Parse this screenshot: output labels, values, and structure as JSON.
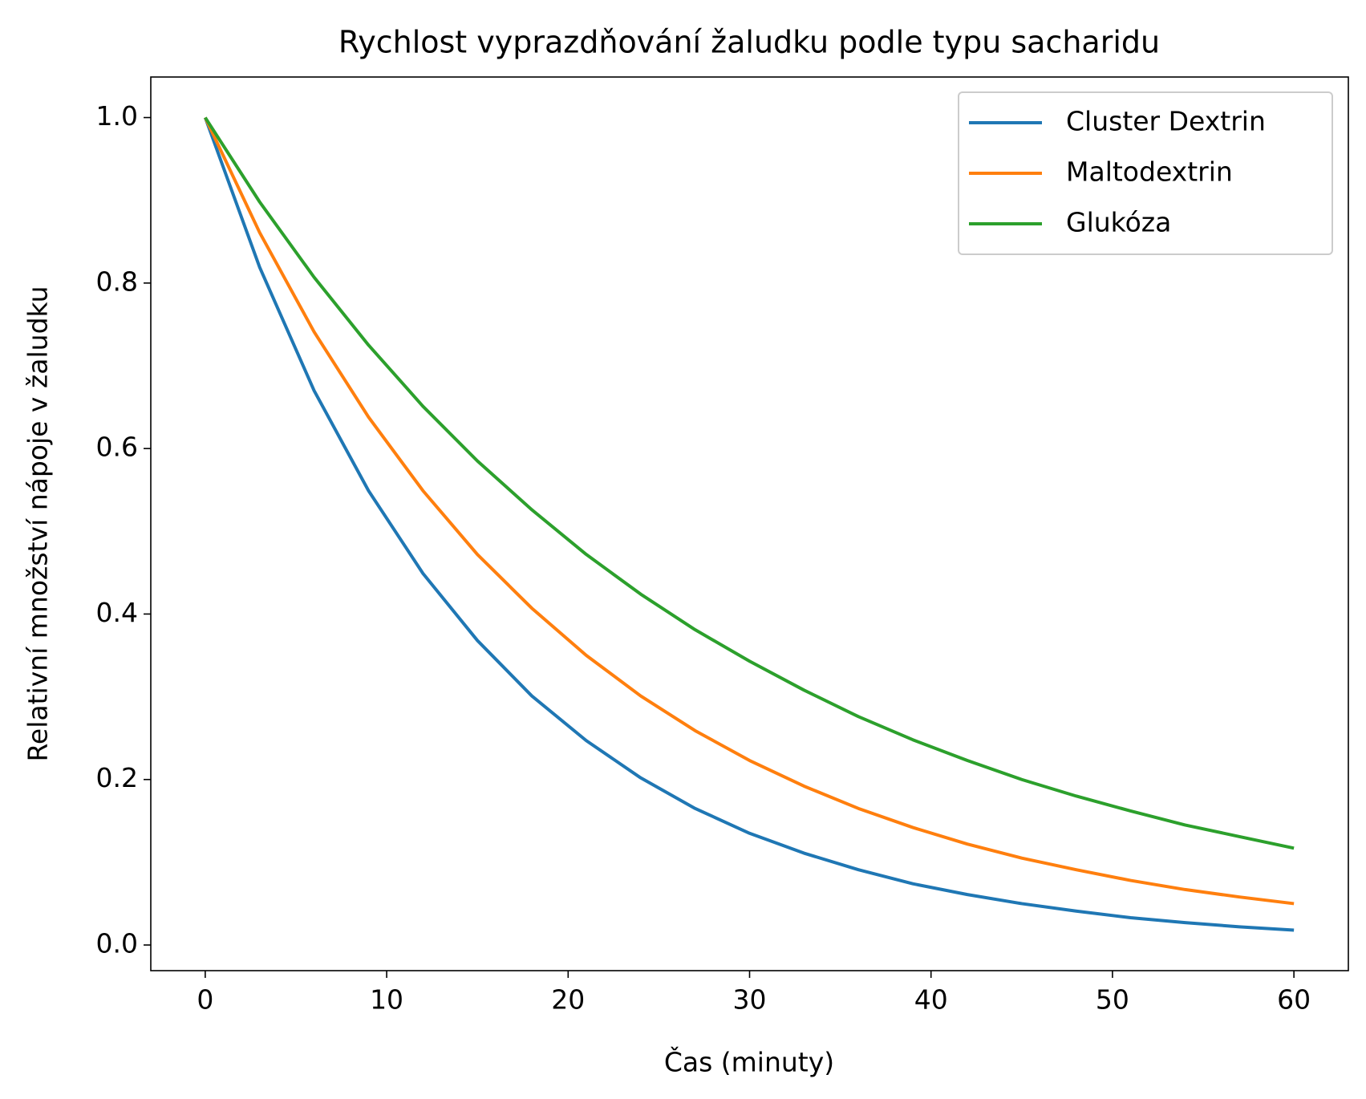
{
  "chart_data": {
    "type": "line",
    "title": "Rychlost vyprazdňování žaludku podle typu sacharidu",
    "xlabel": "Čas (minuty)",
    "ylabel": "Relativní množství nápoje v žaludku",
    "x": [
      0,
      3,
      6,
      9,
      12,
      15,
      18,
      21,
      24,
      27,
      30,
      33,
      36,
      39,
      42,
      45,
      48,
      51,
      54,
      57,
      60
    ],
    "series": [
      {
        "name": "Cluster Dextrin",
        "color": "#1f77b4",
        "values": [
          1,
          0.819,
          0.67,
          0.549,
          0.449,
          0.368,
          0.301,
          0.247,
          0.202,
          0.165,
          0.135,
          0.111,
          0.091,
          0.074,
          0.061,
          0.05,
          0.041,
          0.033,
          0.027,
          0.022,
          0.018
        ]
      },
      {
        "name": "Maltodextrin",
        "color": "#ff7f0e",
        "values": [
          1,
          0.861,
          0.741,
          0.638,
          0.549,
          0.472,
          0.407,
          0.35,
          0.301,
          0.259,
          0.223,
          0.192,
          0.165,
          0.142,
          0.122,
          0.105,
          0.091,
          0.078,
          0.067,
          0.058,
          0.05
        ]
      },
      {
        "name": "Glukóza",
        "color": "#2ca02c",
        "values": [
          1,
          0.898,
          0.807,
          0.725,
          0.651,
          0.585,
          0.526,
          0.472,
          0.424,
          0.381,
          0.343,
          0.308,
          0.276,
          0.248,
          0.223,
          0.2,
          0.18,
          0.162,
          0.145,
          0.131,
          0.117
        ]
      }
    ],
    "xlim": [
      -3,
      63
    ],
    "ylim": [
      -0.031,
      1.049
    ],
    "xticks": [
      0,
      10,
      20,
      30,
      40,
      50,
      60
    ],
    "yticks": [
      {
        "value": 0,
        "label": "0.0"
      },
      0.2,
      0.4,
      0.6,
      0.8,
      {
        "value": 1,
        "label": "1.0"
      }
    ],
    "grid": false,
    "legend": "upper right"
  }
}
